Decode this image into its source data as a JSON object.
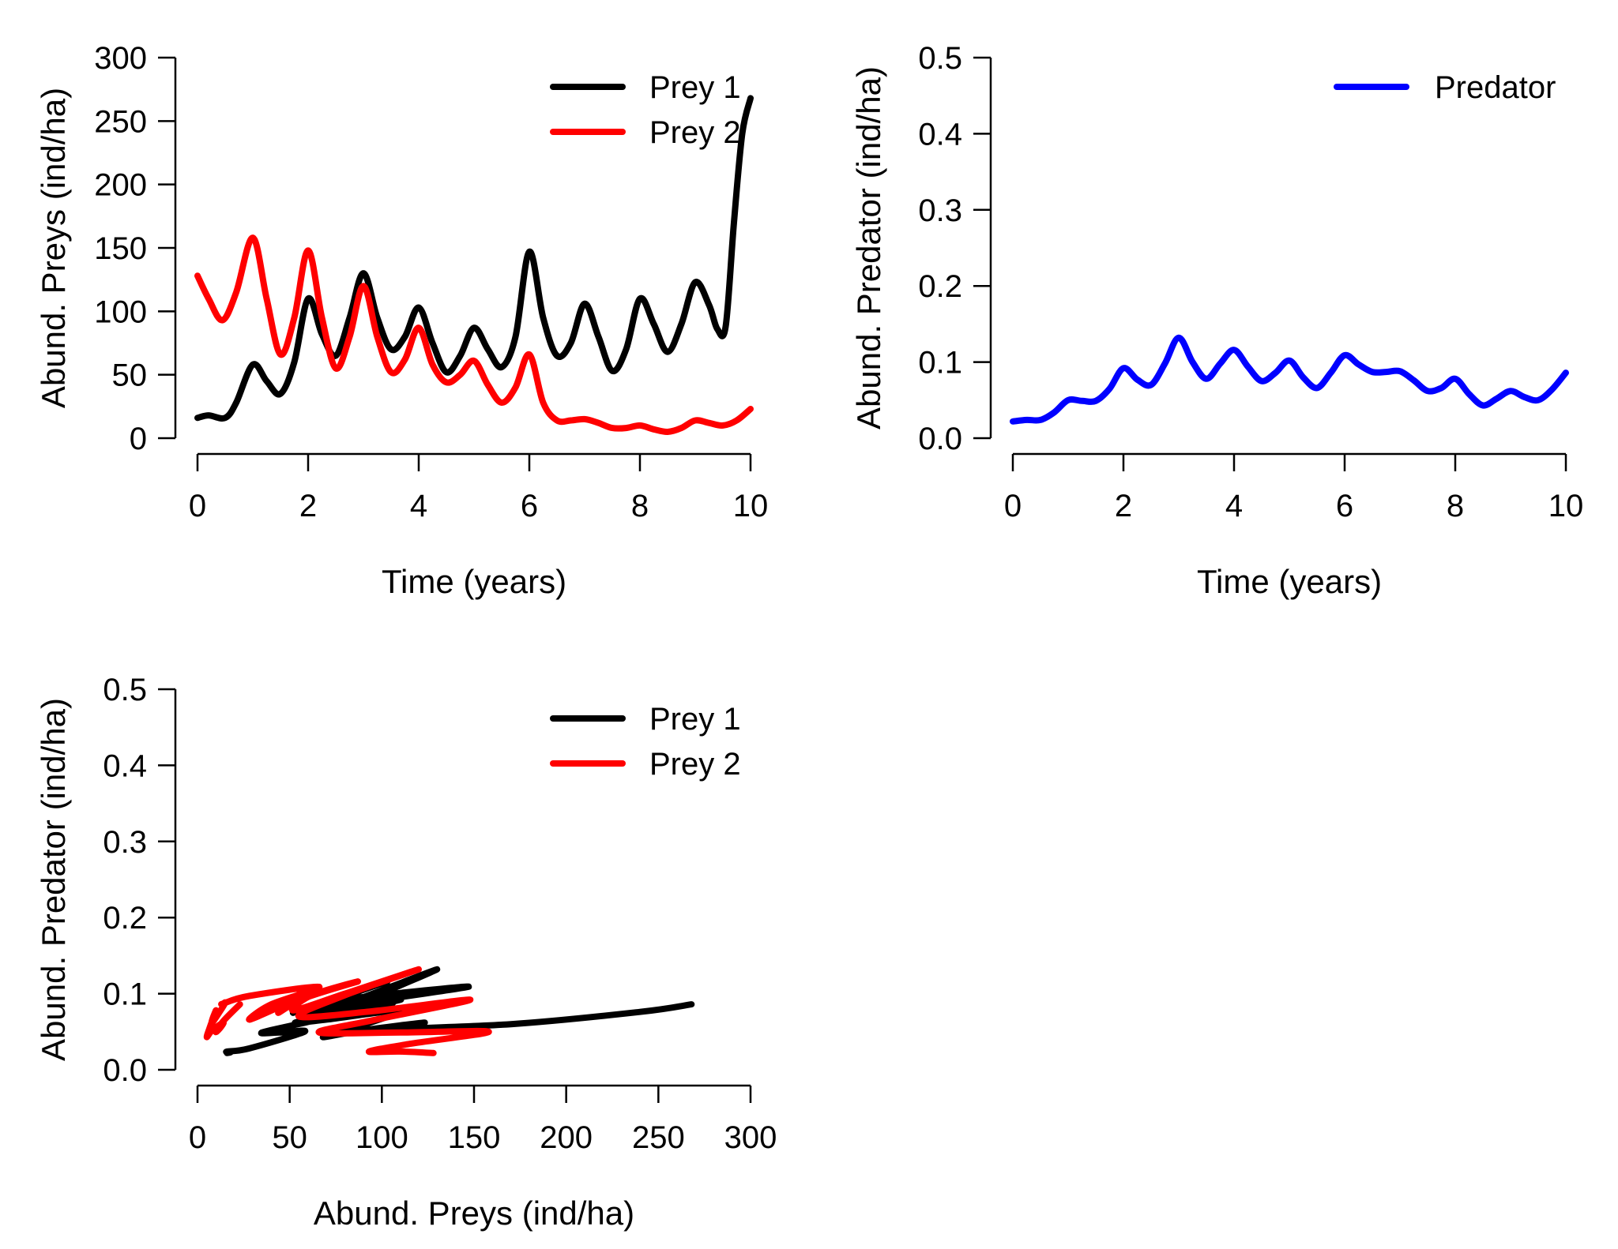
{
  "chart_data": [
    {
      "id": "prey-time",
      "type": "line",
      "xlabel": "Time (years)",
      "ylabel": "Abund. Preys (ind/ha)",
      "xlim": [
        0,
        10
      ],
      "ylim": [
        0,
        300
      ],
      "xticks": [
        0,
        2,
        4,
        6,
        8,
        10
      ],
      "yticks": [
        0,
        50,
        100,
        150,
        200,
        250,
        300
      ],
      "legend_position": "top-right",
      "series": [
        {
          "name": "Prey 1",
          "color": "#000000",
          "x": [
            0,
            0.2,
            0.5,
            0.7,
            1.0,
            1.25,
            1.5,
            1.75,
            2.0,
            2.25,
            2.5,
            2.75,
            3.0,
            3.25,
            3.5,
            3.75,
            4.0,
            4.25,
            4.5,
            4.75,
            5.0,
            5.25,
            5.5,
            5.75,
            6.0,
            6.25,
            6.5,
            6.75,
            7.0,
            7.25,
            7.5,
            7.75,
            8.0,
            8.25,
            8.5,
            8.75,
            9.0,
            9.25,
            9.4,
            9.55,
            9.7,
            9.85,
            10.0
          ],
          "y": [
            16,
            18,
            16,
            28,
            58,
            45,
            35,
            60,
            110,
            82,
            65,
            95,
            130,
            95,
            70,
            80,
            103,
            75,
            52,
            65,
            87,
            70,
            56,
            80,
            147,
            95,
            65,
            75,
            106,
            80,
            53,
            70,
            110,
            90,
            68,
            90,
            123,
            105,
            86,
            88,
            170,
            240,
            268
          ]
        },
        {
          "name": "Prey 2",
          "color": "#ff0000",
          "x": [
            0,
            0.2,
            0.45,
            0.7,
            1.0,
            1.25,
            1.5,
            1.75,
            2.0,
            2.25,
            2.5,
            2.75,
            3.0,
            3.25,
            3.5,
            3.75,
            4.0,
            4.25,
            4.5,
            4.75,
            5.0,
            5.25,
            5.5,
            5.75,
            6.0,
            6.25,
            6.5,
            6.75,
            7.0,
            7.25,
            7.5,
            7.75,
            8.0,
            8.25,
            8.5,
            8.75,
            9.0,
            9.25,
            9.5,
            9.75,
            10.0
          ],
          "y": [
            128,
            110,
            93,
            115,
            158,
            110,
            66,
            95,
            148,
            95,
            55,
            80,
            120,
            80,
            52,
            62,
            87,
            58,
            44,
            50,
            61,
            42,
            28,
            40,
            66,
            28,
            14,
            14,
            15,
            12,
            8,
            8,
            10,
            7,
            5,
            8,
            14,
            12,
            10,
            14,
            23
          ]
        }
      ]
    },
    {
      "id": "predator-time",
      "type": "line",
      "xlabel": "Time (years)",
      "ylabel": "Abund. Predator (ind/ha)",
      "xlim": [
        0,
        10
      ],
      "ylim": [
        0,
        0.5
      ],
      "xticks": [
        0,
        2,
        4,
        6,
        8,
        10
      ],
      "yticks": [
        "0.0",
        "0.1",
        "0.2",
        "0.3",
        "0.4",
        "0.5"
      ],
      "legend_position": "top-right",
      "series": [
        {
          "name": "Predator",
          "color": "#0000ff",
          "x": [
            0,
            0.25,
            0.5,
            0.75,
            1.0,
            1.25,
            1.5,
            1.75,
            2.0,
            2.25,
            2.5,
            2.75,
            3.0,
            3.25,
            3.5,
            3.75,
            4.0,
            4.25,
            4.5,
            4.75,
            5.0,
            5.25,
            5.5,
            5.75,
            6.0,
            6.25,
            6.5,
            6.75,
            7.0,
            7.25,
            7.5,
            7.75,
            8.0,
            8.25,
            8.5,
            8.75,
            9.0,
            9.25,
            9.5,
            9.75,
            10.0
          ],
          "y": [
            0.022,
            0.024,
            0.024,
            0.034,
            0.05,
            0.049,
            0.049,
            0.065,
            0.092,
            0.077,
            0.07,
            0.098,
            0.132,
            0.1,
            0.078,
            0.098,
            0.116,
            0.094,
            0.075,
            0.086,
            0.102,
            0.08,
            0.066,
            0.086,
            0.109,
            0.097,
            0.087,
            0.087,
            0.088,
            0.076,
            0.062,
            0.066,
            0.078,
            0.058,
            0.043,
            0.052,
            0.062,
            0.054,
            0.05,
            0.064,
            0.086
          ]
        }
      ]
    },
    {
      "id": "phase",
      "type": "line",
      "xlabel": "Abund. Preys (ind/ha)",
      "ylabel": "Abund. Predator (ind/ha)",
      "xlim": [
        0,
        300
      ],
      "ylim": [
        0,
        0.5
      ],
      "xticks": [
        0,
        50,
        100,
        150,
        200,
        250,
        300
      ],
      "yticks": [
        "0.0",
        "0.1",
        "0.2",
        "0.3",
        "0.4",
        "0.5"
      ],
      "legend_position": "top-right",
      "series": [
        {
          "name": "Prey 1",
          "color": "#000000",
          "x": [
            16,
            18,
            16,
            28,
            58,
            45,
            35,
            60,
            110,
            82,
            65,
            95,
            130,
            95,
            70,
            80,
            103,
            75,
            52,
            65,
            87,
            70,
            56,
            80,
            147,
            95,
            65,
            75,
            106,
            80,
            53,
            70,
            110,
            90,
            68,
            90,
            123,
            105,
            86,
            88,
            170,
            240,
            268
          ],
          "y": [
            0.022,
            0.023,
            0.024,
            0.028,
            0.05,
            0.049,
            0.049,
            0.063,
            0.092,
            0.078,
            0.07,
            0.096,
            0.132,
            0.1,
            0.078,
            0.096,
            0.116,
            0.094,
            0.075,
            0.086,
            0.102,
            0.081,
            0.066,
            0.084,
            0.109,
            0.097,
            0.087,
            0.087,
            0.088,
            0.076,
            0.062,
            0.066,
            0.078,
            0.059,
            0.043,
            0.052,
            0.062,
            0.054,
            0.05,
            0.052,
            0.06,
            0.076,
            0.086
          ]
        },
        {
          "name": "Prey 2",
          "color": "#ff0000",
          "x": [
            128,
            110,
            93,
            115,
            158,
            110,
            66,
            95,
            148,
            95,
            55,
            80,
            120,
            80,
            52,
            62,
            87,
            58,
            44,
            50,
            61,
            42,
            28,
            40,
            66,
            28,
            14,
            14,
            15,
            12,
            8,
            8,
            10,
            7,
            5,
            8,
            14,
            12,
            10,
            14,
            23
          ],
          "y": [
            0.022,
            0.024,
            0.024,
            0.034,
            0.05,
            0.049,
            0.049,
            0.065,
            0.092,
            0.077,
            0.07,
            0.098,
            0.132,
            0.1,
            0.078,
            0.098,
            0.116,
            0.094,
            0.075,
            0.086,
            0.102,
            0.08,
            0.066,
            0.086,
            0.109,
            0.097,
            0.087,
            0.087,
            0.088,
            0.076,
            0.062,
            0.066,
            0.078,
            0.058,
            0.043,
            0.052,
            0.062,
            0.054,
            0.05,
            0.064,
            0.086
          ]
        }
      ]
    }
  ]
}
